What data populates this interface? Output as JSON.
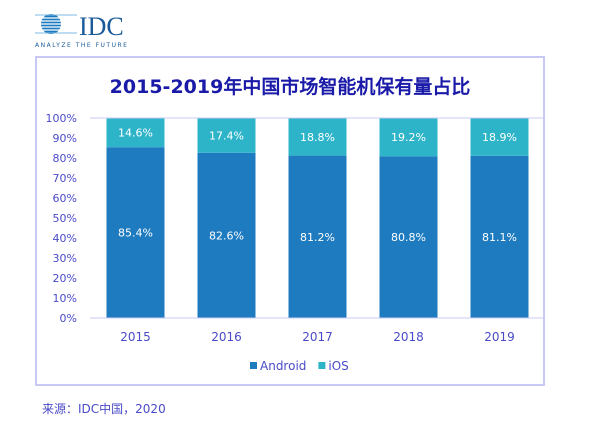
{
  "logo": {
    "text": "IDC",
    "tagline": "ANALYZE THE FUTURE"
  },
  "chart_data": {
    "type": "bar",
    "stacked": true,
    "title": "2015-2019年中国市场智能机保有量占比",
    "categories": [
      "2015",
      "2016",
      "2017",
      "2018",
      "2019"
    ],
    "series": [
      {
        "name": "Android",
        "values": [
          85.4,
          82.6,
          81.2,
          80.8,
          81.1
        ],
        "labels": [
          "85.4%",
          "82.6%",
          "81.2%",
          "80.8%",
          "81.1%"
        ],
        "color": "#1f7bc0"
      },
      {
        "name": "iOS",
        "values": [
          14.6,
          17.4,
          18.8,
          19.2,
          18.9
        ],
        "labels": [
          "14.6%",
          "17.4%",
          "18.8%",
          "19.2%",
          "18.9%"
        ],
        "color": "#2eb4c8"
      }
    ],
    "yticks": [
      "0%",
      "10%",
      "20%",
      "30%",
      "40%",
      "50%",
      "60%",
      "70%",
      "80%",
      "90%",
      "100%"
    ],
    "ylim": [
      0,
      100
    ],
    "grid": false,
    "legend": "bottom"
  },
  "source": "来源：IDC中国，2020"
}
